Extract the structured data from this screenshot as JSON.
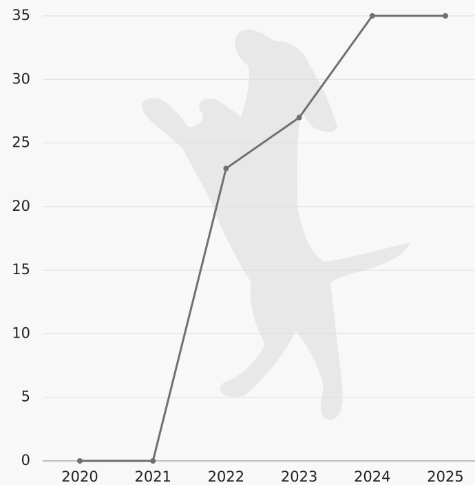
{
  "chart_data": {
    "type": "line",
    "categories": [
      "2020",
      "2021",
      "2022",
      "2023",
      "2024",
      "2025"
    ],
    "series": [
      {
        "name": null,
        "color": "#707070",
        "values": [
          0,
          0,
          23,
          27,
          35,
          35
        ]
      }
    ],
    "ylim": [
      0,
      35
    ],
    "yticks": [
      0,
      5,
      10,
      15,
      20,
      25,
      30,
      35
    ],
    "grid": true
  }
}
